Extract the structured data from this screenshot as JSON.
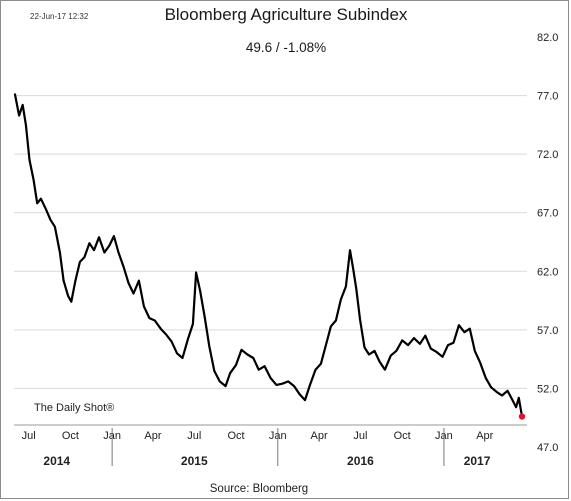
{
  "timestamp": "22-Jun-17 12:32",
  "credit": "The Daily Shot®",
  "source": "Source: Bloomberg",
  "colors": {
    "line": "#000000",
    "last_point": "#e8112d",
    "grid": "#d9d9d9"
  },
  "chart_data": {
    "type": "line",
    "title": "Bloomberg Agriculture Subindex",
    "subtitle": "49.6  /  -1.08%",
    "xlabel": "",
    "ylabel": "",
    "ylim": [
      47.0,
      82.0
    ],
    "y_ticks": [
      "82.0",
      "77.0",
      "72.0",
      "67.0",
      "62.0",
      "57.0",
      "52.0",
      "47.0"
    ],
    "y_axis_position": "right",
    "grid": "horizontal",
    "x_ticks": [
      "Jul",
      "Oct",
      "Jan",
      "Apr",
      "Jul",
      "Oct",
      "Jan",
      "Apr",
      "Jul",
      "Oct",
      "Jan",
      "Apr"
    ],
    "years": [
      "2014",
      "2015",
      "2016",
      "2017"
    ],
    "series": [
      {
        "name": "",
        "points": [
          [
            "2014-06-01",
            77.1
          ],
          [
            "2014-06-10",
            75.3
          ],
          [
            "2014-06-18",
            76.2
          ],
          [
            "2014-06-25",
            74.5
          ],
          [
            "2014-07-03",
            71.5
          ],
          [
            "2014-07-12",
            69.8
          ],
          [
            "2014-07-20",
            67.8
          ],
          [
            "2014-07-28",
            68.2
          ],
          [
            "2014-08-08",
            67.3
          ],
          [
            "2014-08-18",
            66.4
          ],
          [
            "2014-08-28",
            65.8
          ],
          [
            "2014-09-08",
            63.6
          ],
          [
            "2014-09-16",
            61.2
          ],
          [
            "2014-09-26",
            59.9
          ],
          [
            "2014-10-03",
            59.4
          ],
          [
            "2014-10-12",
            61.2
          ],
          [
            "2014-10-22",
            62.8
          ],
          [
            "2014-11-01",
            63.2
          ],
          [
            "2014-11-12",
            64.4
          ],
          [
            "2014-11-22",
            63.8
          ],
          [
            "2014-12-03",
            64.9
          ],
          [
            "2014-12-15",
            63.6
          ],
          [
            "2014-12-26",
            64.2
          ],
          [
            "2015-01-05",
            65.0
          ],
          [
            "2015-01-15",
            63.6
          ],
          [
            "2015-01-26",
            62.4
          ],
          [
            "2015-02-06",
            61.0
          ],
          [
            "2015-02-17",
            60.1
          ],
          [
            "2015-03-01",
            61.2
          ],
          [
            "2015-03-12",
            59.0
          ],
          [
            "2015-03-24",
            58.0
          ],
          [
            "2015-04-05",
            57.8
          ],
          [
            "2015-04-18",
            57.1
          ],
          [
            "2015-04-30",
            56.6
          ],
          [
            "2015-05-12",
            56.0
          ],
          [
            "2015-05-24",
            55.0
          ],
          [
            "2015-06-05",
            54.6
          ],
          [
            "2015-06-17",
            56.2
          ],
          [
            "2015-06-28",
            57.5
          ],
          [
            "2015-07-05",
            61.9
          ],
          [
            "2015-07-14",
            60.3
          ],
          [
            "2015-07-24",
            58.1
          ],
          [
            "2015-08-03",
            55.6
          ],
          [
            "2015-08-14",
            53.5
          ],
          [
            "2015-08-26",
            52.6
          ],
          [
            "2015-09-08",
            52.2
          ],
          [
            "2015-09-18",
            53.3
          ],
          [
            "2015-10-01",
            54.0
          ],
          [
            "2015-10-13",
            55.3
          ],
          [
            "2015-10-26",
            54.9
          ],
          [
            "2015-11-08",
            54.6
          ],
          [
            "2015-11-20",
            53.6
          ],
          [
            "2015-12-03",
            53.9
          ],
          [
            "2015-12-16",
            52.9
          ],
          [
            "2015-12-29",
            52.3
          ],
          [
            "2016-01-11",
            52.4
          ],
          [
            "2016-01-24",
            52.6
          ],
          [
            "2016-02-06",
            52.2
          ],
          [
            "2016-02-18",
            51.5
          ],
          [
            "2016-03-01",
            51.0
          ],
          [
            "2016-03-12",
            52.3
          ],
          [
            "2016-03-24",
            53.6
          ],
          [
            "2016-04-05",
            54.1
          ],
          [
            "2016-04-16",
            55.7
          ],
          [
            "2016-04-27",
            57.3
          ],
          [
            "2016-05-08",
            57.8
          ],
          [
            "2016-05-19",
            59.6
          ],
          [
            "2016-05-30",
            60.7
          ],
          [
            "2016-06-08",
            63.8
          ],
          [
            "2016-06-15",
            62.2
          ],
          [
            "2016-06-22",
            60.5
          ],
          [
            "2016-06-30",
            57.9
          ],
          [
            "2016-07-10",
            55.5
          ],
          [
            "2016-07-20",
            54.9
          ],
          [
            "2016-08-01",
            55.2
          ],
          [
            "2016-08-12",
            54.3
          ],
          [
            "2016-08-24",
            53.6
          ],
          [
            "2016-09-06",
            54.8
          ],
          [
            "2016-09-18",
            55.2
          ],
          [
            "2016-10-01",
            56.1
          ],
          [
            "2016-10-14",
            55.7
          ],
          [
            "2016-10-27",
            56.3
          ],
          [
            "2016-11-09",
            55.8
          ],
          [
            "2016-11-21",
            56.5
          ],
          [
            "2016-12-03",
            55.4
          ],
          [
            "2016-12-16",
            55.1
          ],
          [
            "2016-12-29",
            54.7
          ],
          [
            "2017-01-10",
            55.7
          ],
          [
            "2017-01-22",
            55.9
          ],
          [
            "2017-02-03",
            57.4
          ],
          [
            "2017-02-15",
            56.8
          ],
          [
            "2017-02-27",
            57.1
          ],
          [
            "2017-03-10",
            55.2
          ],
          [
            "2017-03-22",
            54.2
          ],
          [
            "2017-04-03",
            52.9
          ],
          [
            "2017-04-15",
            52.1
          ],
          [
            "2017-04-27",
            51.7
          ],
          [
            "2017-05-09",
            51.4
          ],
          [
            "2017-05-21",
            51.8
          ],
          [
            "2017-06-01",
            51.0
          ],
          [
            "2017-06-09",
            50.4
          ],
          [
            "2017-06-15",
            51.2
          ],
          [
            "2017-06-22",
            49.6
          ]
        ]
      }
    ]
  }
}
